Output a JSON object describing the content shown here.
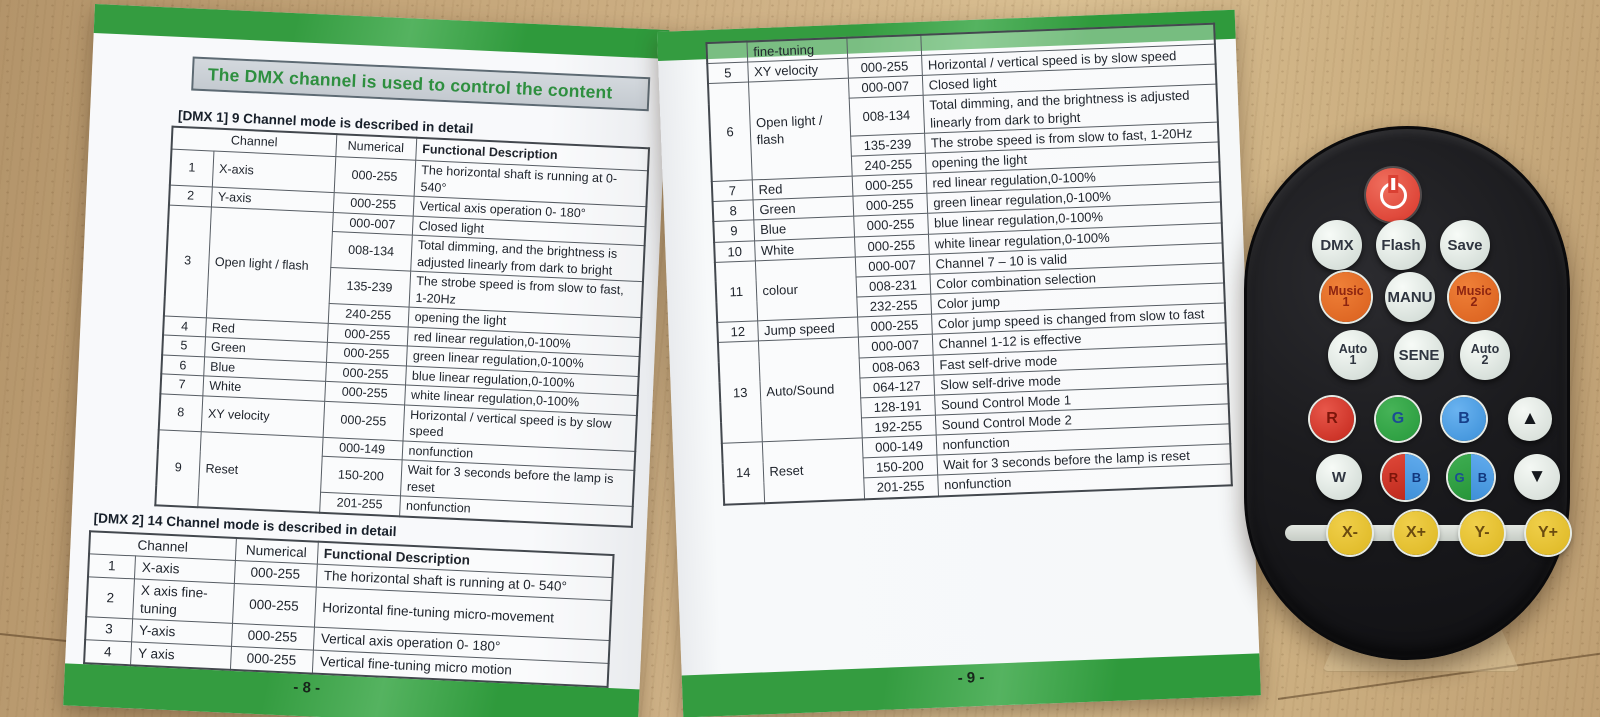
{
  "left_page": {
    "title_banner": "The DMX channel is used to control the content",
    "footer_page_number": "- 8 -",
    "dmx1_heading": "[DMX 1] 9 Channel mode is described in detail",
    "dmx2_heading": "[DMX 2] 14 Channel mode is described in detail",
    "table_headers": {
      "channel": "Channel",
      "numerical": "Numerical",
      "description": "Functional Description"
    },
    "dmx1_rows": [
      {
        "ch": "1",
        "name": "X-axis",
        "subs": [
          {
            "num": "000-255",
            "desc": "The horizontal shaft is running at 0- 540°"
          }
        ]
      },
      {
        "ch": "2",
        "name": "Y-axis",
        "subs": [
          {
            "num": "000-255",
            "desc": "Vertical axis operation 0- 180°"
          }
        ]
      },
      {
        "ch": "3",
        "name": "Open light / flash",
        "subs": [
          {
            "num": "000-007",
            "desc": "Closed light"
          },
          {
            "num": "008-134",
            "desc": "Total dimming, and the brightness is adjusted linearly from dark to bright"
          },
          {
            "num": "135-239",
            "desc": "The strobe speed is from slow to fast, 1-20Hz"
          },
          {
            "num": "240-255",
            "desc": "opening the light"
          }
        ]
      },
      {
        "ch": "4",
        "name": "Red",
        "subs": [
          {
            "num": "000-255",
            "desc": "red linear regulation,0-100%"
          }
        ]
      },
      {
        "ch": "5",
        "name": "Green",
        "subs": [
          {
            "num": "000-255",
            "desc": "green linear regulation,0-100%"
          }
        ]
      },
      {
        "ch": "6",
        "name": "Blue",
        "subs": [
          {
            "num": "000-255",
            "desc": "blue linear regulation,0-100%"
          }
        ]
      },
      {
        "ch": "7",
        "name": "White",
        "subs": [
          {
            "num": "000-255",
            "desc": "white linear regulation,0-100%"
          }
        ]
      },
      {
        "ch": "8",
        "name": "XY velocity",
        "subs": [
          {
            "num": "000-255",
            "desc": "Horizontal / vertical speed is by slow speed"
          }
        ]
      },
      {
        "ch": "9",
        "name": "Reset",
        "subs": [
          {
            "num": "000-149",
            "desc": "nonfunction"
          },
          {
            "num": "150-200",
            "desc": "Wait for 3 seconds before the lamp is reset"
          },
          {
            "num": "201-255",
            "desc": "nonfunction"
          }
        ]
      }
    ],
    "dmx2_rows": [
      {
        "ch": "1",
        "name": "X-axis",
        "subs": [
          {
            "num": "000-255",
            "desc": "The horizontal shaft is running at 0- 540°"
          }
        ]
      },
      {
        "ch": "2",
        "name": "X axis fine-tuning",
        "subs": [
          {
            "num": "000-255",
            "desc": "Horizontal fine-tuning micro-movement"
          }
        ]
      },
      {
        "ch": "3",
        "name": "Y-axis",
        "subs": [
          {
            "num": "000-255",
            "desc": "Vertical axis operation 0- 180°"
          }
        ]
      },
      {
        "ch": "4",
        "name": "Y axis",
        "subs": [
          {
            "num": "000-255",
            "desc": "Vertical fine-tuning micro motion"
          }
        ]
      }
    ]
  },
  "right_page": {
    "footer_page_number": "- 9 -",
    "table_rows": [
      {
        "ch": "",
        "name": "fine-tuning",
        "subs": [
          {
            "num": "",
            "desc": ""
          }
        ]
      },
      {
        "ch": "5",
        "name": "XY velocity",
        "subs": [
          {
            "num": "000-255",
            "desc": "Horizontal / vertical speed is by slow speed"
          }
        ]
      },
      {
        "ch": "6",
        "name": "Open light / flash",
        "subs": [
          {
            "num": "000-007",
            "desc": "Closed light"
          },
          {
            "num": "008-134",
            "desc": "Total dimming, and the brightness is adjusted linearly from dark to bright"
          },
          {
            "num": "135-239",
            "desc": "The strobe speed is from slow to fast, 1-20Hz"
          },
          {
            "num": "240-255",
            "desc": "opening the light"
          }
        ]
      },
      {
        "ch": "7",
        "name": "Red",
        "subs": [
          {
            "num": "000-255",
            "desc": "red linear regulation,0-100%"
          }
        ]
      },
      {
        "ch": "8",
        "name": "Green",
        "subs": [
          {
            "num": "000-255",
            "desc": "green linear regulation,0-100%"
          }
        ]
      },
      {
        "ch": "9",
        "name": "Blue",
        "subs": [
          {
            "num": "000-255",
            "desc": "blue linear regulation,0-100%"
          }
        ]
      },
      {
        "ch": "10",
        "name": "White",
        "subs": [
          {
            "num": "000-255",
            "desc": "white linear regulation,0-100%"
          }
        ]
      },
      {
        "ch": "11",
        "name": "colour",
        "subs": [
          {
            "num": "000-007",
            "desc": "Channel 7 – 10 is valid"
          },
          {
            "num": "008-231",
            "desc": "Color combination selection"
          },
          {
            "num": "232-255",
            "desc": "Color jump"
          }
        ]
      },
      {
        "ch": "12",
        "name": "Jump speed",
        "subs": [
          {
            "num": "000-255",
            "desc": "Color jump speed is changed from slow to fast"
          }
        ]
      },
      {
        "ch": "13",
        "name": "Auto/Sound",
        "subs": [
          {
            "num": "000-007",
            "desc": "Channel 1-12 is effective"
          },
          {
            "num": "008-063",
            "desc": "Fast self-drive mode"
          },
          {
            "num": "064-127",
            "desc": "Slow self-drive mode"
          },
          {
            "num": "128-191",
            "desc": "Sound Control Mode 1"
          },
          {
            "num": "192-255",
            "desc": "Sound Control Mode 2"
          }
        ]
      },
      {
        "ch": "14",
        "name": "Reset",
        "subs": [
          {
            "num": "000-149",
            "desc": "nonfunction"
          },
          {
            "num": "150-200",
            "desc": "Wait for 3 seconds before the lamp is reset"
          },
          {
            "num": "201-255",
            "desc": "nonfunction"
          }
        ]
      }
    ]
  },
  "remote": {
    "rows": {
      "mode": [
        {
          "label": "DMX",
          "style": "whitekey",
          "name": "dmx-button"
        },
        {
          "label": "Flash",
          "style": "whitekey",
          "name": "flash-button"
        },
        {
          "label": "Save",
          "style": "whitekey",
          "name": "save-button"
        }
      ],
      "music": [
        {
          "label": "Music",
          "label2": "1",
          "style": "orange",
          "name": "music1-button"
        },
        {
          "label": "MANU",
          "style": "whitekey",
          "name": "manu-button"
        },
        {
          "label": "Music",
          "label2": "2",
          "style": "orange",
          "name": "music2-button"
        }
      ],
      "auto": [
        {
          "label": "Auto",
          "label2": "1",
          "style": "whitekey",
          "name": "auto1-button"
        },
        {
          "label": "SENE",
          "style": "whitekey",
          "name": "sene-button"
        },
        {
          "label": "Auto",
          "label2": "2",
          "style": "whitekey",
          "name": "auto2-button"
        }
      ],
      "rgb": [
        {
          "label": "R",
          "style": "red",
          "name": "red-button"
        },
        {
          "label": "G",
          "style": "green",
          "name": "green-button"
        },
        {
          "label": "B",
          "style": "blue",
          "name": "blue-button"
        },
        {
          "label": "▲",
          "style": "arrow",
          "name": "up-arrow-button",
          "icon": true
        }
      ],
      "wsplit": [
        {
          "label": "W",
          "style": "whitekey",
          "name": "white-color-button"
        },
        {
          "split": [
            "R",
            "B"
          ],
          "style": "split rb",
          "name": "red-blue-button"
        },
        {
          "split": [
            "G",
            "B"
          ],
          "style": "split gb",
          "name": "green-blue-button"
        },
        {
          "label": "▼",
          "style": "arrow",
          "name": "down-arrow-button",
          "icon": true
        }
      ],
      "xy": [
        {
          "label": "X-",
          "style": "yellow",
          "name": "x-minus-button"
        },
        {
          "label": "X+",
          "style": "yellow",
          "name": "x-plus-button"
        },
        {
          "label": "Y-",
          "style": "yellow",
          "name": "y-minus-button"
        },
        {
          "label": "Y+",
          "style": "yellow",
          "name": "y-plus-button"
        }
      ]
    }
  },
  "colors": {
    "green_band": "#349c40",
    "title_text_green": "#2e8f3f",
    "title_box_gray": "#c9ced4",
    "paper": "#f7f8fa",
    "table_border": "#575d64",
    "wood": "#cfb287",
    "remote_body": "#1b1b1e",
    "power_red": "#d8372b",
    "key_white": "#e6ece7",
    "key_orange": "#e2702b",
    "key_red": "#cf3a28",
    "key_green": "#2ea04a",
    "key_blue": "#4aa0e8",
    "key_yellow": "#e6c235"
  }
}
